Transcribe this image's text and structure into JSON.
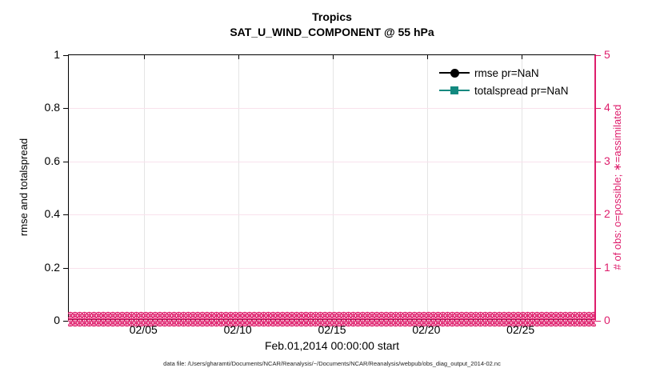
{
  "figure": {
    "title": "Tropics",
    "subtitle": "SAT_U_WIND_COMPONENT @ 55 hPa",
    "xlabel": "Feb.01,2014 00:00:00 start",
    "caption": "data file: /Users/gharamti/Documents/NCAR/Reanalysis/~/Documents/NCAR/Reanalysis/webpub/obs_diag_output_2014-02.nc"
  },
  "legend": {
    "items": [
      {
        "label": "rmse pr=NaN",
        "color": "#000000",
        "marker": "circle"
      },
      {
        "label": "totalspread pr=NaN",
        "color": "#12897F",
        "marker": "square"
      }
    ]
  },
  "colors": {
    "accent_pink": "#DE1E6C",
    "teal": "#12897F",
    "grid_vertical": "#e4e4e4",
    "grid_horizontal": "#f9e2ec"
  },
  "chart_data": {
    "type": "line",
    "title": "Tropics",
    "subtitle": "SAT_U_WIND_COMPONENT @ 55 hPa",
    "xlabel": "Feb.01,2014 00:00:00 start",
    "ylabel_left": "rmse and totalspread",
    "ylabel_right": "# of obs: o=possible; ∗=assimilated",
    "ylim_left": [
      0,
      1
    ],
    "yticks_left": [
      0,
      0.2,
      0.4,
      0.6,
      0.8,
      1
    ],
    "ylim_right": [
      0,
      5
    ],
    "yticks_right": [
      0,
      1,
      2,
      3,
      4,
      5
    ],
    "x_span_days": 28,
    "x_start": "Feb.01,2014 00:00:00",
    "x_ticks": [
      {
        "label": "02/05",
        "day": 4
      },
      {
        "label": "02/10",
        "day": 9
      },
      {
        "label": "02/15",
        "day": 14
      },
      {
        "label": "02/20",
        "day": 19
      },
      {
        "label": "02/25",
        "day": 24
      }
    ],
    "grid": true,
    "legend_position": "top-right-inside",
    "series": [
      {
        "name": "rmse pr=NaN",
        "axis": "left",
        "color": "#000000",
        "marker": "circle",
        "values": "all NaN (no line drawn)"
      },
      {
        "name": "totalspread pr=NaN",
        "axis": "left",
        "color": "#12897F",
        "marker": "square",
        "values": "all NaN (no line drawn)"
      },
      {
        "name": "possible obs (o)",
        "axis": "right",
        "color": "#DE1E6C",
        "marker": "o",
        "n_points": 112,
        "constant_value": 0
      },
      {
        "name": "assimilated obs (*)",
        "axis": "right",
        "color": "#DE1E6C",
        "marker": "*",
        "n_points": 112,
        "constant_value": 0
      }
    ]
  }
}
